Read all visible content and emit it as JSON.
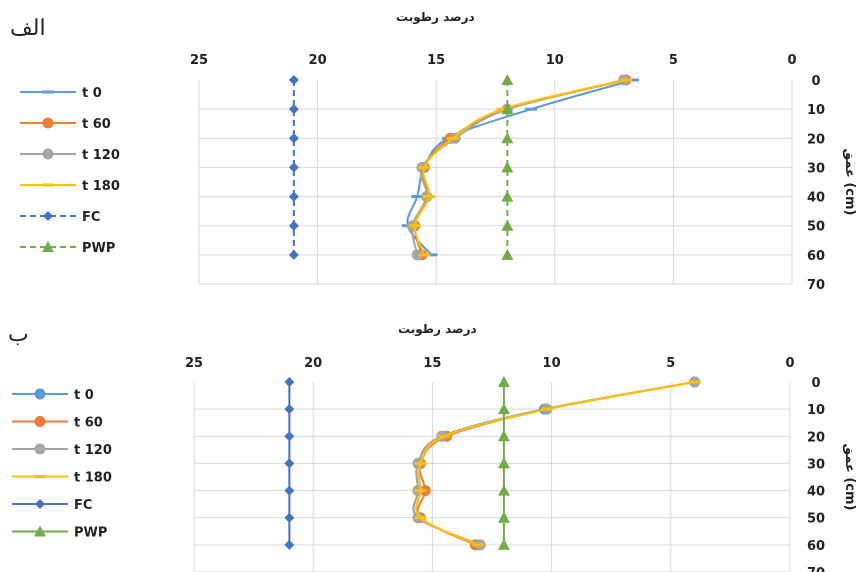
{
  "chart_data": [
    {
      "type": "line",
      "panel_label": "الف",
      "title": "درصد رطوبت",
      "ylabel": "عمق (cm)",
      "xlim": [
        0,
        25
      ],
      "x_reversed": true,
      "x_ticks": [
        "0",
        "5",
        "10",
        "15",
        "20",
        "25"
      ],
      "ylim": [
        0,
        70
      ],
      "y_ticks": [
        "0",
        "10",
        "20",
        "30",
        "40",
        "50",
        "60",
        "70"
      ],
      "legend_position": "left",
      "series": [
        {
          "name": "t 0",
          "color": "#5b9bd5",
          "marker": "dash",
          "dashed": false,
          "points": [
            [
              6.7,
              0
            ],
            [
              11.0,
              10
            ],
            [
              14.5,
              20
            ],
            [
              15.5,
              30
            ],
            [
              15.8,
              40
            ],
            [
              16.2,
              50
            ],
            [
              15.2,
              60
            ]
          ]
        },
        {
          "name": "t 60",
          "color": "#ed7d31",
          "marker": "circle",
          "dashed": false,
          "points": [
            [
              7.0,
              0
            ],
            [
              12.0,
              10
            ],
            [
              14.4,
              20
            ],
            [
              15.5,
              30
            ],
            [
              15.4,
              40
            ],
            [
              15.9,
              50
            ],
            [
              15.6,
              60
            ]
          ]
        },
        {
          "name": "t 120",
          "color": "#a5a5a5",
          "marker": "circle",
          "dashed": false,
          "points": [
            [
              7.1,
              0
            ],
            [
              12.0,
              10
            ],
            [
              14.2,
              20
            ],
            [
              15.6,
              30
            ],
            [
              15.4,
              40
            ],
            [
              16.0,
              50
            ],
            [
              15.8,
              60
            ]
          ]
        },
        {
          "name": "t 180",
          "color": "#ffc000",
          "marker": "dash",
          "dashed": false,
          "points": [
            [
              7.0,
              0
            ],
            [
              12.2,
              10
            ],
            [
              14.3,
              20
            ],
            [
              15.5,
              30
            ],
            [
              15.3,
              40
            ],
            [
              15.9,
              50
            ],
            [
              15.5,
              60
            ]
          ]
        },
        {
          "name": "FC",
          "color": "#4472c4",
          "marker": "diamond",
          "dashed": true,
          "points": [
            [
              21,
              0
            ],
            [
              21,
              10
            ],
            [
              21,
              20
            ],
            [
              21,
              30
            ],
            [
              21,
              40
            ],
            [
              21,
              50
            ],
            [
              21,
              60
            ]
          ]
        },
        {
          "name": "PWP",
          "color": "#70ad47",
          "marker": "triangle",
          "dashed": true,
          "points": [
            [
              12,
              0
            ],
            [
              12,
              10
            ],
            [
              12,
              20
            ],
            [
              12,
              30
            ],
            [
              12,
              40
            ],
            [
              12,
              50
            ],
            [
              12,
              60
            ]
          ]
        }
      ]
    },
    {
      "type": "line",
      "panel_label": "ب",
      "title": "درصد رطوبت",
      "ylabel": "عمق (cm)",
      "xlim": [
        0,
        25
      ],
      "x_reversed": true,
      "x_ticks": [
        "0",
        "5",
        "10",
        "15",
        "20",
        "25"
      ],
      "ylim": [
        0,
        70
      ],
      "y_ticks": [
        "0",
        "10",
        "20",
        "30",
        "40",
        "50",
        "60",
        "70"
      ],
      "legend_position": "left",
      "series": [
        {
          "name": "t 0",
          "color": "#5b9bd5",
          "marker": "circle",
          "dashed": false,
          "points": [
            [
              4.0,
              0
            ],
            [
              10.3,
              10
            ],
            [
              14.6,
              20
            ],
            [
              15.6,
              30
            ],
            [
              15.6,
              40
            ],
            [
              15.6,
              50
            ],
            [
              13.0,
              60
            ]
          ]
        },
        {
          "name": "t 60",
          "color": "#ed7d31",
          "marker": "circle",
          "dashed": false,
          "points": [
            [
              4.0,
              0
            ],
            [
              10.2,
              10
            ],
            [
              14.4,
              20
            ],
            [
              15.5,
              30
            ],
            [
              15.3,
              40
            ],
            [
              15.5,
              50
            ],
            [
              13.2,
              60
            ]
          ]
        },
        {
          "name": "t 120",
          "color": "#a5a5a5",
          "marker": "circle",
          "dashed": false,
          "points": [
            [
              4.0,
              0
            ],
            [
              10.2,
              10
            ],
            [
              14.6,
              20
            ],
            [
              15.6,
              30
            ],
            [
              15.6,
              40
            ],
            [
              15.6,
              50
            ],
            [
              13.0,
              60
            ]
          ]
        },
        {
          "name": "t 180",
          "color": "#ffc000",
          "marker": "dash",
          "dashed": false,
          "points": [
            [
              4.0,
              0
            ],
            [
              10.2,
              10
            ],
            [
              14.5,
              20
            ],
            [
              15.5,
              30
            ],
            [
              15.5,
              40
            ],
            [
              15.5,
              50
            ],
            [
              13.1,
              60
            ]
          ]
        },
        {
          "name": "FC",
          "color": "#4472c4",
          "marker": "diamond",
          "dashed": false,
          "points": [
            [
              21,
              0
            ],
            [
              21,
              10
            ],
            [
              21,
              20
            ],
            [
              21,
              30
            ],
            [
              21,
              40
            ],
            [
              21,
              50
            ],
            [
              21,
              60
            ]
          ]
        },
        {
          "name": "PWP",
          "color": "#70ad47",
          "marker": "triangle",
          "dashed": false,
          "points": [
            [
              12,
              0
            ],
            [
              12,
              10
            ],
            [
              12,
              20
            ],
            [
              12,
              30
            ],
            [
              12,
              40
            ],
            [
              12,
              50
            ],
            [
              12,
              60
            ]
          ]
        }
      ]
    }
  ]
}
